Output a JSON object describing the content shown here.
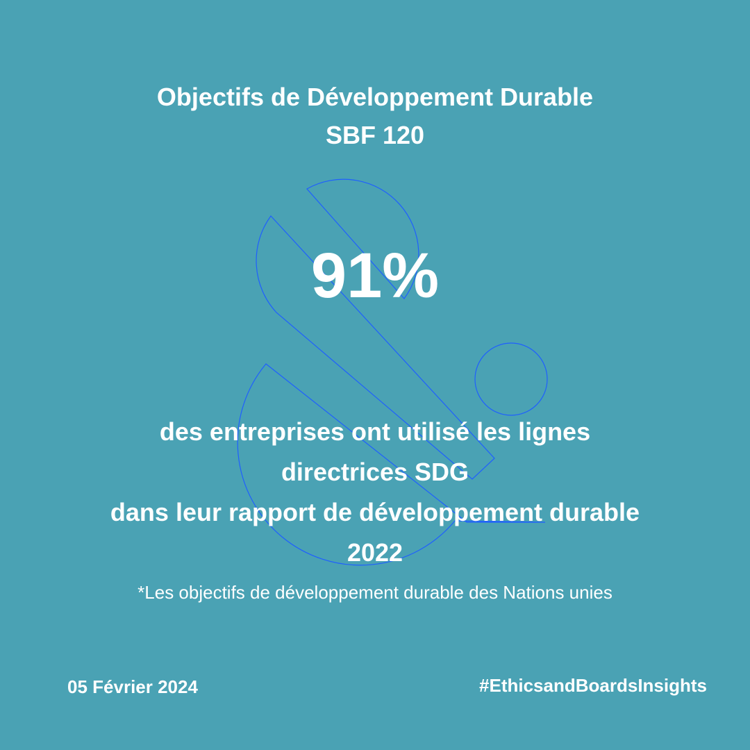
{
  "title": {
    "line1": "Objectifs de Développement Durable",
    "line2": "SBF 120"
  },
  "stat": {
    "value": "91%"
  },
  "description": {
    "line1": "des entreprises ont utilisé les lignes",
    "line2": "directrices SDG",
    "line3": "dans leur rapport de développement durable",
    "line4": "2022"
  },
  "footnote": "*Les objectifs de développement durable des Nations unies",
  "footer": {
    "date": "05 Février 2024",
    "hashtag": "#EthicsandBoardsInsights"
  },
  "colors": {
    "background": "#4aa2b4",
    "text": "#ffffff",
    "logo_outline": "#1f5fff"
  },
  "logo": {
    "icon": "ampersand-outline-logo"
  }
}
